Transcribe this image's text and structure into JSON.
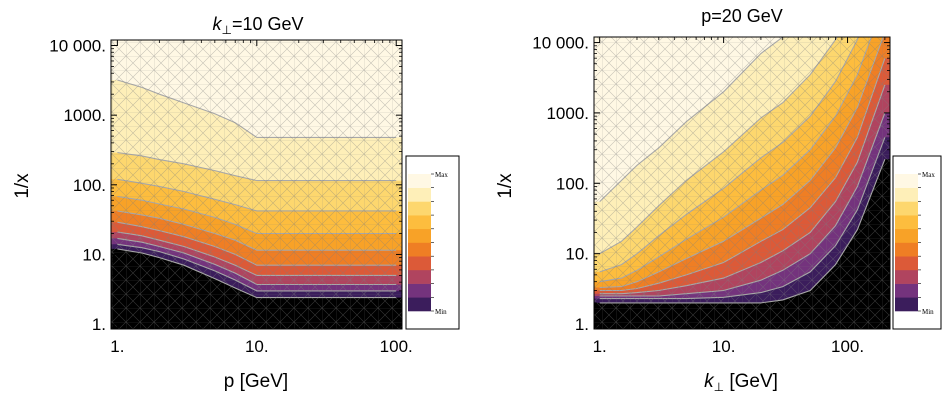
{
  "chart_data": [
    {
      "type": "heatmap",
      "subtype": "contour",
      "title_var": "k",
      "title_sub": "⊥",
      "title_rest": "=10 GeV",
      "xlabel": "p [GeV]",
      "ylabel": "1/x",
      "x_scale": "log",
      "y_scale": "log",
      "xlim": [
        0.9,
        110
      ],
      "ylim": [
        0.85,
        12000
      ],
      "xticks": [
        {
          "v": 1,
          "label": "1."
        },
        {
          "v": 10,
          "label": "10."
        },
        {
          "v": 100,
          "label": "100."
        }
      ],
      "yticks": [
        {
          "v": 1,
          "label": "1."
        },
        {
          "v": 10,
          "label": "10."
        },
        {
          "v": 100,
          "label": "100."
        },
        {
          "v": 1000,
          "label": "1000."
        },
        {
          "v": 10000,
          "label": "10 000."
        }
      ],
      "legend": {
        "placement": "right",
        "max_label": "Max",
        "min_label": "Min"
      },
      "palette": [
        "#000000",
        "#3b1d5c",
        "#74337d",
        "#b0445f",
        "#dc5a38",
        "#ef7e24",
        "#f8a227",
        "#fdbd3e",
        "#fdd76e",
        "#feefb8",
        "#fff8e4"
      ],
      "contour_x": [
        1,
        1.5,
        2,
        3,
        5,
        7,
        10,
        20,
        50,
        100
      ],
      "contours": [
        [
          12,
          10.5,
          9,
          7,
          4.5,
          3.3,
          2.4,
          2.4,
          2.4,
          2.4
        ],
        [
          14,
          12.5,
          11,
          8.6,
          5.8,
          4.3,
          3.0,
          3.0,
          3.0,
          3.0
        ],
        [
          17,
          15,
          13,
          10.5,
          7.2,
          5.4,
          3.7,
          3.7,
          3.7,
          3.7
        ],
        [
          21,
          18.5,
          16,
          13,
          9.2,
          7.0,
          5.0,
          5.0,
          5.0,
          5.0
        ],
        [
          29,
          25,
          22,
          18,
          13,
          10,
          7.0,
          7.0,
          7.0,
          7.0
        ],
        [
          42,
          37,
          33,
          27,
          20,
          16,
          11.5,
          11.5,
          11.5,
          11.5
        ],
        [
          68,
          60,
          53,
          45,
          34,
          27,
          20,
          20,
          20,
          20
        ],
        [
          120,
          105,
          95,
          80,
          62,
          52,
          42,
          42,
          42,
          42
        ],
        [
          290,
          260,
          230,
          200,
          160,
          135,
          115,
          115,
          115,
          115
        ],
        [
          3200,
          2500,
          2000,
          1500,
          1050,
          780,
          480,
          480,
          480,
          480
        ]
      ]
    },
    {
      "type": "heatmap",
      "subtype": "contour",
      "title": "p=20 GeV",
      "xlabel_var": "k",
      "xlabel_sub": "⊥",
      "xlabel_rest": " [GeV]",
      "ylabel": "1/x",
      "x_scale": "log",
      "y_scale": "log",
      "xlim": [
        0.9,
        220
      ],
      "ylim": [
        0.85,
        12000
      ],
      "xticks": [
        {
          "v": 1,
          "label": "1."
        },
        {
          "v": 10,
          "label": "10."
        },
        {
          "v": 100,
          "label": "100."
        }
      ],
      "yticks": [
        {
          "v": 1,
          "label": "1."
        },
        {
          "v": 10,
          "label": "10."
        },
        {
          "v": 100,
          "label": "100."
        },
        {
          "v": 1000,
          "label": "1000."
        },
        {
          "v": 10000,
          "label": "10 000."
        }
      ],
      "legend": {
        "placement": "right",
        "max_label": "Max",
        "min_label": "Min"
      },
      "palette": [
        "#000000",
        "#3b1d5c",
        "#74337d",
        "#b0445f",
        "#dc5a38",
        "#ef7e24",
        "#f8a227",
        "#fdbd3e",
        "#fdd76e",
        "#feefb8",
        "#fff8e4"
      ],
      "contour_x": [
        1,
        1.5,
        2,
        3,
        5,
        10,
        20,
        30,
        50,
        80,
        120,
        200
      ],
      "contours": [
        [
          2.0,
          2.0,
          2.0,
          2.0,
          2.0,
          2.0,
          2.0,
          2.2,
          3.0,
          7,
          22,
          220
        ],
        [
          2.3,
          2.3,
          2.3,
          2.3,
          2.3,
          2.4,
          2.8,
          3.4,
          5.5,
          13,
          42,
          450
        ],
        [
          2.5,
          2.5,
          2.5,
          2.5,
          2.7,
          3.0,
          4.2,
          5.8,
          10,
          25,
          90,
          1000
        ],
        [
          2.7,
          2.7,
          2.8,
          3.0,
          3.5,
          4.5,
          7.5,
          11,
          20,
          55,
          200,
          2500
        ],
        [
          3.0,
          3.0,
          3.2,
          3.8,
          5.0,
          7.5,
          15,
          22,
          45,
          120,
          450,
          6000
        ],
        [
          3.3,
          3.4,
          4.0,
          5.5,
          8.5,
          15,
          32,
          50,
          110,
          320,
          1200,
          14000
        ],
        [
          4.0,
          4.5,
          5.8,
          9,
          16,
          33,
          80,
          130,
          300,
          900,
          3500,
          40000
        ],
        [
          5.5,
          7,
          10,
          18,
          36,
          85,
          230,
          380,
          900,
          2800,
          11000,
          120000
        ],
        [
          10,
          15,
          24,
          48,
          110,
          280,
          850,
          1400,
          3500,
          11000,
          40000,
          400000
        ],
        [
          55,
          110,
          180,
          320,
          750,
          2000,
          7000,
          12000,
          30000,
          90000,
          300000,
          3000000
        ]
      ]
    }
  ]
}
